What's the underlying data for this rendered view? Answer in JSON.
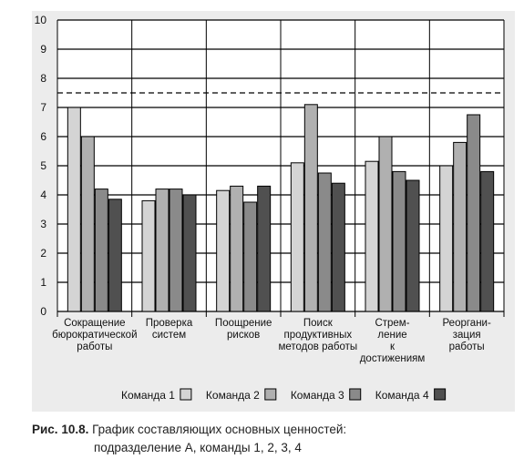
{
  "chart_data": {
    "type": "bar",
    "categories": [
      [
        "Сокращение",
        "бюрократической",
        "работы"
      ],
      [
        "Проверка",
        "систем"
      ],
      [
        "Поощрение",
        "рисков"
      ],
      [
        "Поиск",
        "продуктивных",
        "методов работы"
      ],
      [
        "Стрем-",
        "ление",
        "к",
        "достижениям"
      ],
      [
        "Реоргани-",
        "зация",
        "работы"
      ]
    ],
    "series": [
      {
        "name": "Команда 1",
        "color": "#d4d4d4",
        "values": [
          7.0,
          3.8,
          4.15,
          5.1,
          5.15,
          5.0
        ]
      },
      {
        "name": "Команда 2",
        "color": "#b0b0b0",
        "values": [
          6.0,
          4.2,
          4.3,
          7.1,
          6.0,
          5.8
        ]
      },
      {
        "name": "Команда 3",
        "color": "#8a8a8a",
        "values": [
          4.2,
          4.2,
          3.75,
          4.75,
          4.8,
          6.75
        ]
      },
      {
        "name": "Команда 4",
        "color": "#505050",
        "values": [
          3.85,
          4.0,
          4.3,
          4.4,
          4.5,
          4.8
        ]
      }
    ],
    "ylim": [
      0,
      10
    ],
    "yticks": [
      "0",
      "1",
      "2",
      "3",
      "4",
      "5",
      "6",
      "7",
      "8",
      "9",
      "10"
    ],
    "reference_line": {
      "value": 7.5,
      "style": "dashed"
    },
    "grid": "horizontal",
    "legend_position": "bottom",
    "background_color": "#ececec",
    "plot_background_color": "#ffffff"
  },
  "caption": {
    "label": "Рис. 10.8.",
    "line1": "График составляющих основных ценностей:",
    "line2": "подразделение А, команды 1, 2, 3, 4"
  }
}
